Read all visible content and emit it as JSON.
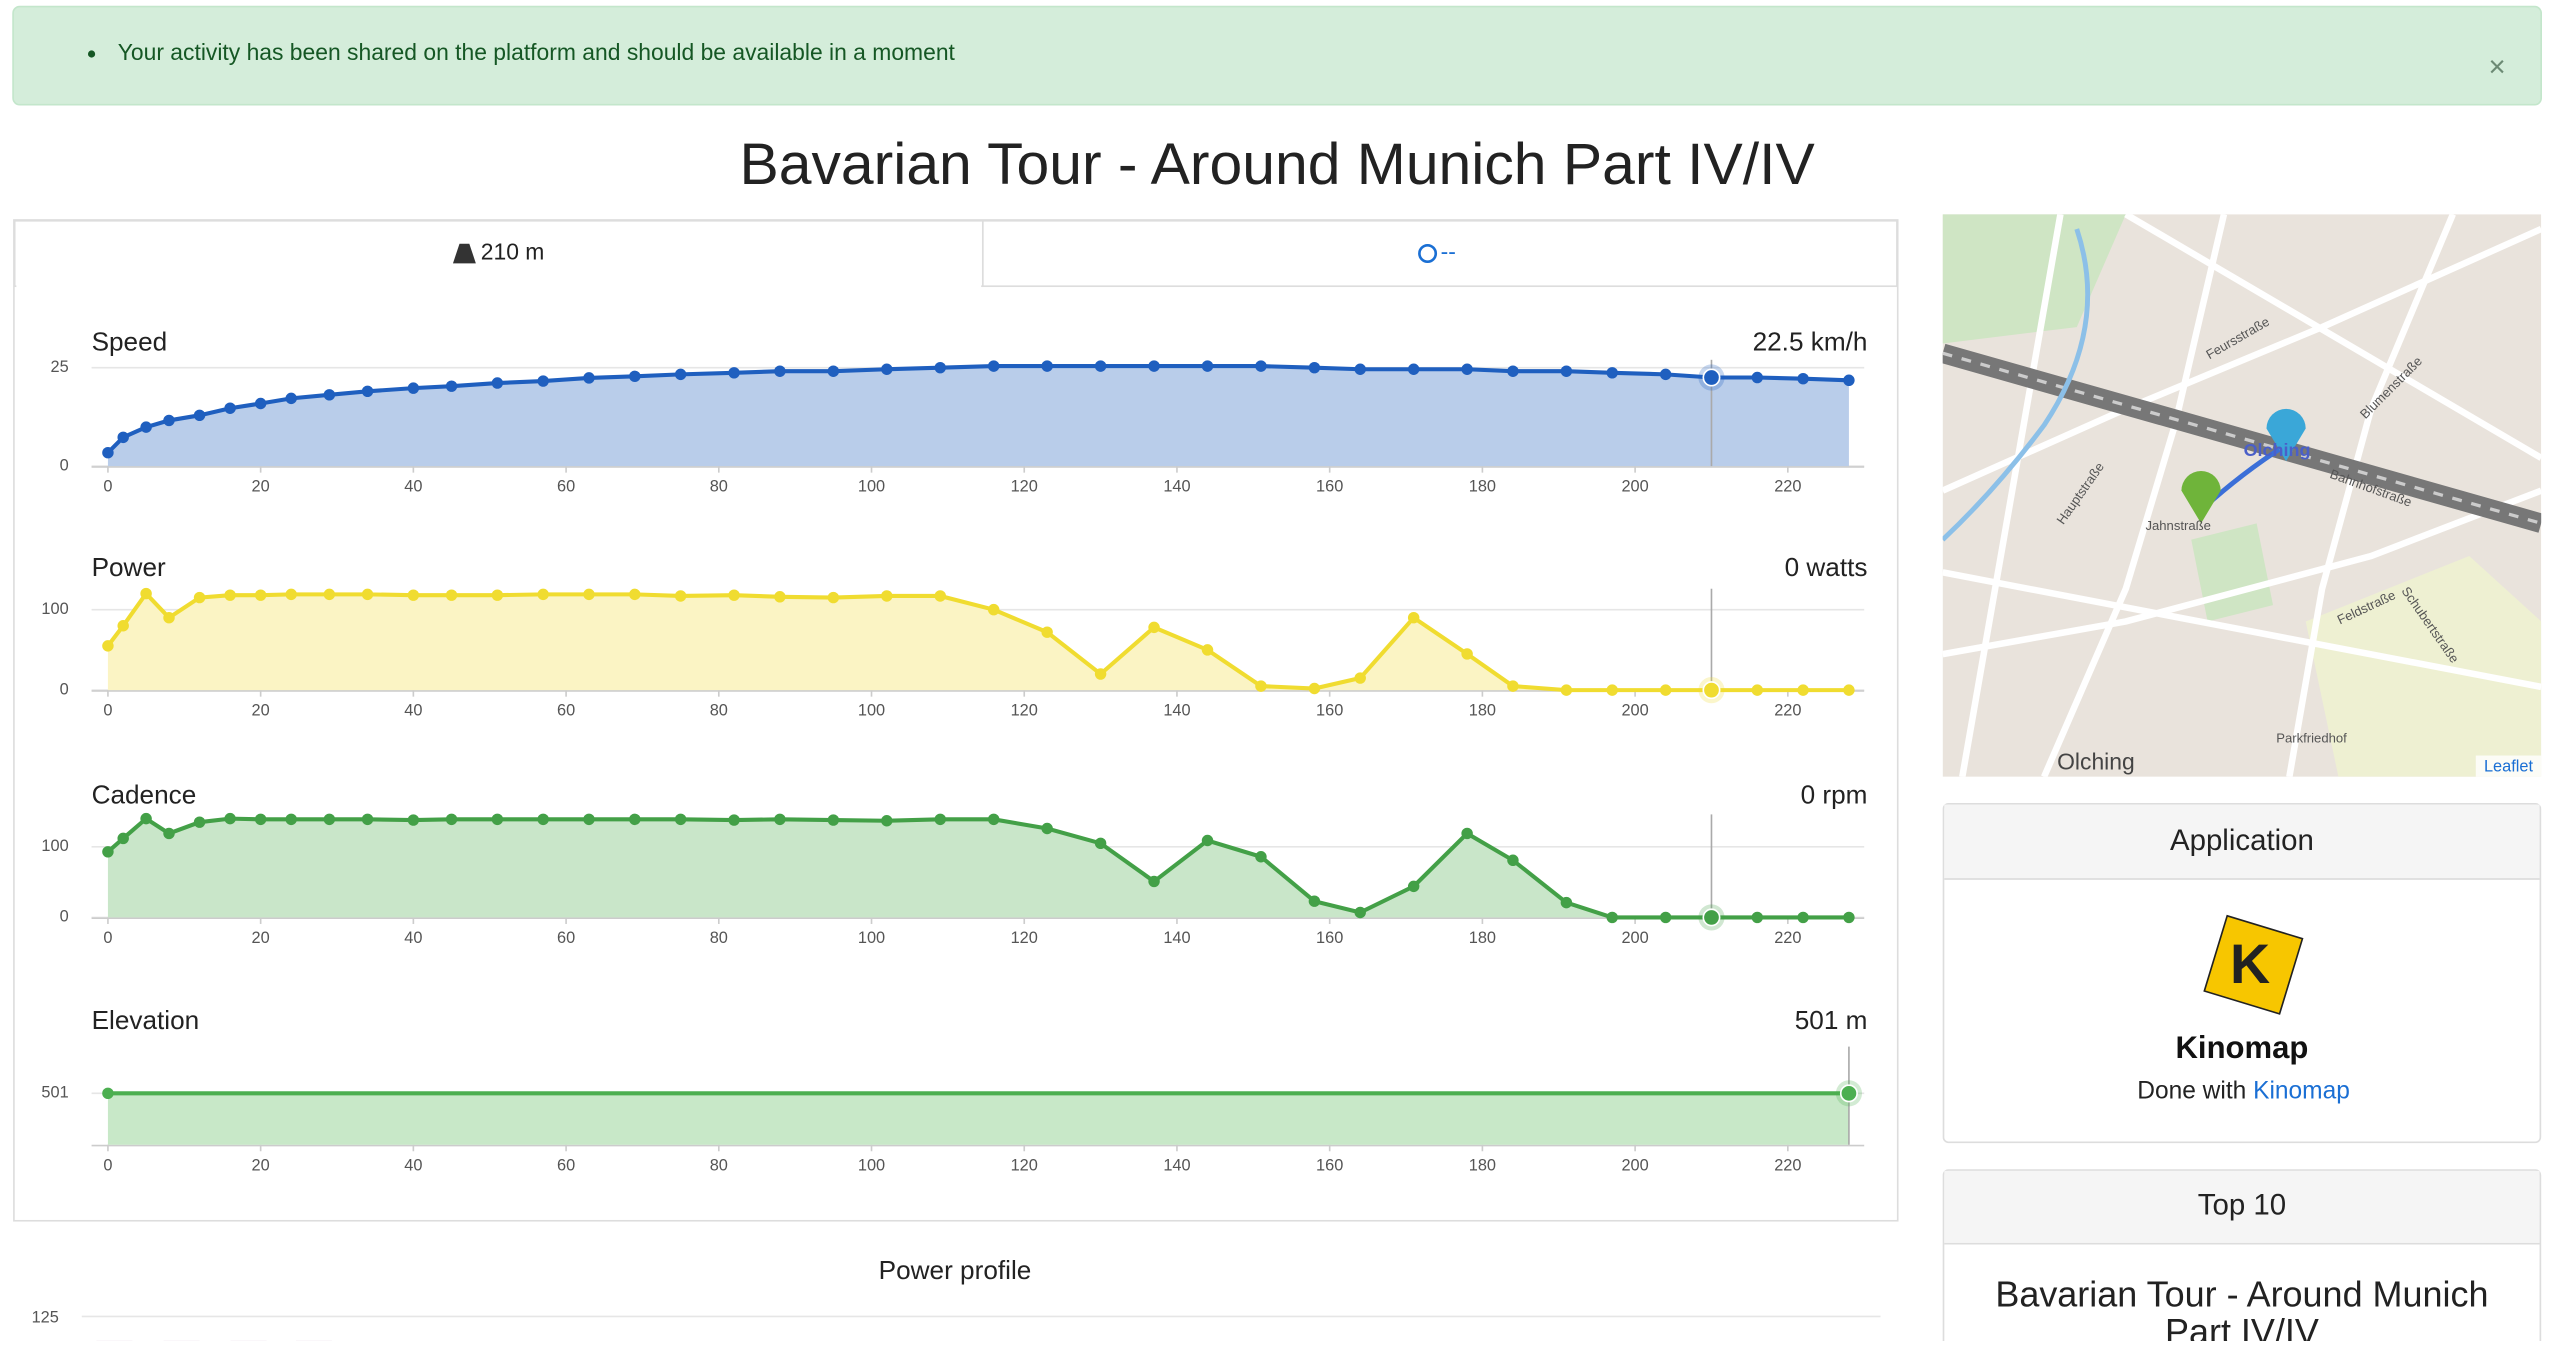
{
  "alert": {
    "text": "Your activity has been shared on the platform and should be available in a moment",
    "close": "×"
  },
  "title": "Bavarian Tour - Around Munich Part IV/IV",
  "tabs": [
    {
      "label": "210 m"
    },
    {
      "label": "--"
    }
  ],
  "charts": [
    {
      "type": "area",
      "title": "Speed",
      "readout": "22.5 km/h",
      "color": "#1f5fbf",
      "fill": "#b9cdea",
      "hover_index": 36,
      "x": [
        0,
        2,
        5,
        8,
        12,
        16,
        20,
        24,
        29,
        34,
        40,
        45,
        51,
        57,
        63,
        69,
        75,
        82,
        88,
        95,
        102,
        109,
        116,
        123,
        130,
        137,
        144,
        151,
        158,
        164,
        171,
        178,
        184,
        191,
        197,
        204,
        210,
        216,
        222,
        228
      ],
      "values": [
        3.4,
        7.3,
        9.9,
        11.6,
        12.9,
        14.7,
        15.9,
        17.2,
        18.1,
        19,
        19.8,
        20.3,
        21.1,
        21.6,
        22.4,
        22.8,
        23.3,
        23.7,
        24.1,
        24.1,
        24.6,
        25,
        25.4,
        25.4,
        25.4,
        25.4,
        25.4,
        25.4,
        25,
        24.6,
        24.6,
        24.6,
        24.1,
        24.1,
        23.7,
        23.3,
        22.5,
        22.5,
        22.2,
        21.8
      ],
      "xlim": [
        0,
        230
      ],
      "xticks": [
        0,
        20,
        40,
        60,
        80,
        100,
        120,
        140,
        160,
        180,
        200,
        220
      ],
      "ylim": [
        0,
        27
      ],
      "yticks": [
        0,
        25
      ]
    },
    {
      "type": "area",
      "title": "Power",
      "readout": "0 watts",
      "color": "#f0dc30",
      "fill": "#fbf4c4",
      "hover_index": 36,
      "x": [
        0,
        2,
        5,
        8,
        12,
        16,
        20,
        24,
        29,
        34,
        40,
        45,
        51,
        57,
        63,
        69,
        75,
        82,
        88,
        95,
        102,
        109,
        116,
        123,
        130,
        137,
        144,
        151,
        158,
        164,
        171,
        178,
        184,
        191,
        197,
        204,
        210,
        216,
        222,
        228
      ],
      "values": [
        55,
        80,
        120,
        90,
        115,
        118,
        118,
        119,
        119,
        119,
        118,
        118,
        118,
        119,
        119,
        119,
        117,
        118,
        116,
        115,
        117,
        117,
        100,
        72,
        20,
        78,
        50,
        5,
        2,
        15,
        90,
        45,
        5,
        0,
        0,
        0,
        0,
        0,
        0,
        0
      ],
      "xlim": [
        0,
        230
      ],
      "xticks": [
        0,
        20,
        40,
        60,
        80,
        100,
        120,
        140,
        160,
        180,
        200,
        220
      ],
      "ylim": [
        0,
        126
      ],
      "yticks": [
        0,
        100
      ]
    },
    {
      "type": "area",
      "title": "Cadence",
      "readout": "0 rpm",
      "color": "#43a047",
      "fill": "#c9e6c9",
      "hover_index": 36,
      "x": [
        0,
        2,
        5,
        8,
        12,
        16,
        20,
        24,
        29,
        34,
        40,
        45,
        51,
        57,
        63,
        69,
        75,
        82,
        88,
        95,
        102,
        109,
        116,
        123,
        130,
        137,
        144,
        151,
        158,
        164,
        171,
        178,
        184,
        191,
        197,
        204,
        210,
        216,
        222,
        228
      ],
      "values": [
        93,
        112,
        140,
        119,
        135,
        140,
        139,
        139,
        139,
        139,
        138,
        139,
        139,
        139,
        139,
        139,
        139,
        138,
        139,
        138,
        137,
        139,
        139,
        126,
        105,
        51,
        109,
        86,
        23,
        7,
        44,
        119,
        81,
        21,
        0,
        0,
        0,
        0,
        0,
        0
      ],
      "xlim": [
        0,
        230
      ],
      "xticks": [
        0,
        20,
        40,
        60,
        80,
        100,
        120,
        140,
        160,
        180,
        200,
        220
      ],
      "ylim": [
        0,
        146
      ],
      "yticks": [
        0,
        100
      ]
    },
    {
      "type": "area",
      "title": "Elevation",
      "readout": "501 m",
      "color": "#4caf50",
      "fill": "#c8e8c8",
      "hover_index": 1,
      "x": [
        0,
        228
      ],
      "values": [
        501,
        501
      ],
      "xlim": [
        0,
        230
      ],
      "xticks": [
        0,
        20,
        40,
        60,
        80,
        100,
        120,
        140,
        160,
        180,
        200,
        220
      ],
      "ylim": [
        495.5,
        506
      ],
      "yticks": [
        501
      ]
    }
  ],
  "map": {
    "labels": [
      "Olching",
      "Olching",
      "Feursstraße",
      "Hauptstraße",
      "Bahnhofstraße",
      "Jahnstraße",
      "Schubertstraße",
      "Parkfriedhof",
      "Feldstraße",
      "Blumenstraße"
    ],
    "attribution": "Leaflet"
  },
  "application": {
    "header": "Application",
    "logo": "Kinomap",
    "done_prefix": "Done with",
    "link": "Kinomap"
  },
  "top10": {
    "header": "Top 10",
    "title_lines": [
      "Bavarian Tour - Around Munich",
      "Part IV/IV"
    ]
  },
  "power_profile": {
    "title": "Power profile",
    "yticks": [
      125
    ]
  }
}
